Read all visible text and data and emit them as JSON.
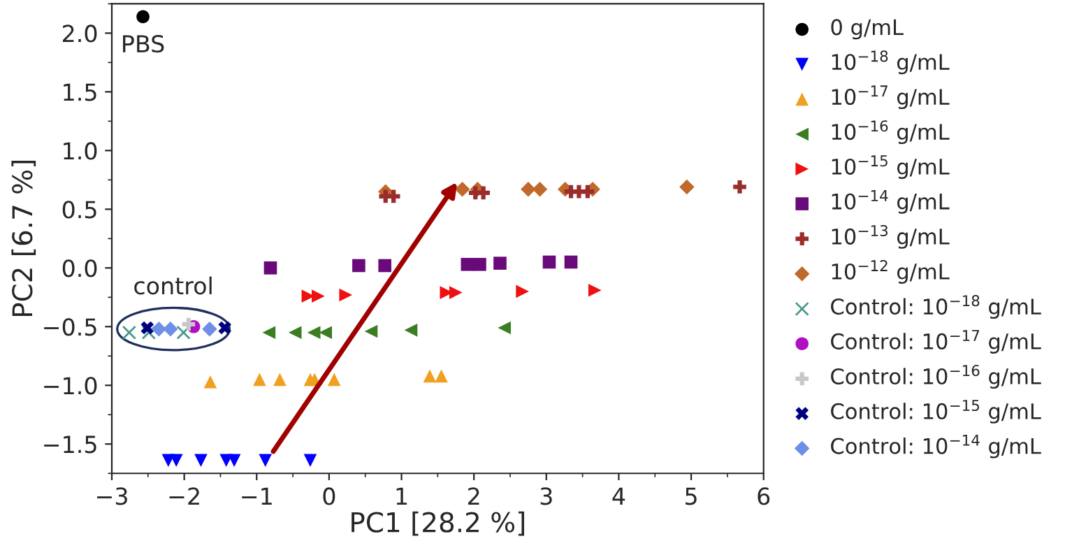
{
  "chart_data": {
    "type": "scatter",
    "xlabel": "PC1 [28.2 %]",
    "ylabel": "PC2 [6.7 %]",
    "xlim": [
      -3,
      6
    ],
    "ylim": [
      -1.75,
      2.25
    ],
    "xticks": [
      {
        "value": -3,
        "label": "−3"
      },
      {
        "value": -2,
        "label": "−2"
      },
      {
        "value": -1,
        "label": "−1"
      },
      0,
      1,
      2,
      3,
      4,
      5,
      6
    ],
    "yticks": [
      {
        "value": -1.5,
        "label": "−1.5"
      },
      {
        "value": -1.0,
        "label": "−1.0"
      },
      {
        "value": -0.5,
        "label": "−0.5"
      },
      {
        "value": 0,
        "label": "0.0"
      },
      {
        "value": 0.5,
        "label": "0.5"
      },
      {
        "value": 1.0,
        "label": "1.0"
      },
      {
        "value": 1.5,
        "label": "1.5"
      },
      {
        "value": 2.0,
        "label": "2.0"
      }
    ],
    "grid": false,
    "legend": "right",
    "annotations": [
      {
        "text": "PBS",
        "x": -2.57,
        "y": 2.14
      },
      {
        "text": "control",
        "x": -2.15,
        "y": -0.5
      }
    ],
    "series": [
      {
        "name": "0 g/mL",
        "color": "#000000",
        "marker": "circle",
        "x": [
          -2.57
        ],
        "values": [
          2.14
        ]
      },
      {
        "name": "10$^{−18}$ g/mL",
        "color": "#0000ff",
        "marker": "triangle-down",
        "x": [
          -2.22,
          -2.11,
          -1.77,
          -1.42,
          -1.31,
          -0.88,
          -0.26
        ],
        "values": [
          -1.64,
          -1.64,
          -1.64,
          -1.64,
          -1.64,
          -1.64,
          -1.64
        ]
      },
      {
        "name": "10$^{−17}$ g/mL",
        "color": "#f0a020",
        "marker": "triangle",
        "x": [
          -1.64,
          -0.96,
          -0.68,
          -0.26,
          -0.2,
          0.07,
          1.39,
          1.55
        ],
        "values": [
          -0.97,
          -0.95,
          -0.95,
          -0.95,
          -0.95,
          -0.95,
          -0.92,
          -0.92
        ]
      },
      {
        "name": "10$^{−16}$ g/mL",
        "color": "#3a7d22",
        "marker": "triangle-left",
        "x": [
          -0.83,
          -0.47,
          -0.21,
          -0.05,
          0.58,
          1.13,
          2.42
        ],
        "values": [
          -0.55,
          -0.55,
          -0.55,
          -0.55,
          -0.54,
          -0.53,
          -0.51
        ]
      },
      {
        "name": "10$^{−15}$ g/mL",
        "color": "#ee1111",
        "marker": "triangle-right",
        "x": [
          -0.29,
          -0.15,
          0.23,
          1.62,
          1.75,
          2.67,
          3.67
        ],
        "values": [
          -0.24,
          -0.24,
          -0.23,
          -0.21,
          -0.21,
          -0.2,
          -0.19
        ]
      },
      {
        "name": "10$^{−14}$ g/mL",
        "color": "#6a0a7a",
        "marker": "square",
        "x": [
          -0.81,
          0.41,
          0.77,
          1.91,
          2.08,
          2.36,
          3.04,
          3.34
        ],
        "values": [
          0.0,
          0.02,
          0.02,
          0.03,
          0.03,
          0.04,
          0.05,
          0.05
        ]
      },
      {
        "name": "10$^{−13}$ g/mL",
        "color": "#9b2c2c",
        "marker": "plus",
        "x": [
          0.78,
          0.89,
          2.02,
          2.13,
          3.34,
          3.45,
          3.57,
          5.67
        ],
        "values": [
          0.61,
          0.61,
          0.64,
          0.64,
          0.65,
          0.65,
          0.65,
          0.69
        ]
      },
      {
        "name": "10$^{−12}$ g/mL",
        "color": "#c0692a",
        "marker": "diamond",
        "x": [
          0.78,
          1.84,
          2.05,
          2.75,
          2.91,
          3.26,
          3.64,
          4.94
        ],
        "values": [
          0.65,
          0.67,
          0.67,
          0.67,
          0.67,
          0.67,
          0.67,
          0.69
        ]
      },
      {
        "name": "Control: 10$^{−18}$ g/mL",
        "color": "#4a9a8a",
        "marker": "x",
        "x": [
          -2.76,
          -2.49,
          -2.01
        ],
        "values": [
          -0.55,
          -0.55,
          -0.55
        ]
      },
      {
        "name": "Control: 10$^{−17}$ g/mL",
        "color": "#b010c0",
        "marker": "circle",
        "x": [
          -1.87
        ],
        "values": [
          -0.5
        ]
      },
      {
        "name": "Control: 10$^{−16}$ g/mL",
        "color": "#c8c8c8",
        "marker": "plus",
        "x": [
          -1.94
        ],
        "values": [
          -0.48
        ]
      },
      {
        "name": "Control: 10$^{−15}$ g/mL",
        "color": "#00007f",
        "marker": "cross",
        "x": [
          -2.51,
          -1.44
        ],
        "values": [
          -0.51,
          -0.51
        ]
      },
      {
        "name": "Control: 10$^{−14}$ g/mL",
        "color": "#6e8fe8",
        "marker": "diamond",
        "x": [
          -2.35,
          -2.19,
          -1.65
        ],
        "values": [
          -0.52,
          -0.52,
          -0.52
        ]
      }
    ]
  }
}
